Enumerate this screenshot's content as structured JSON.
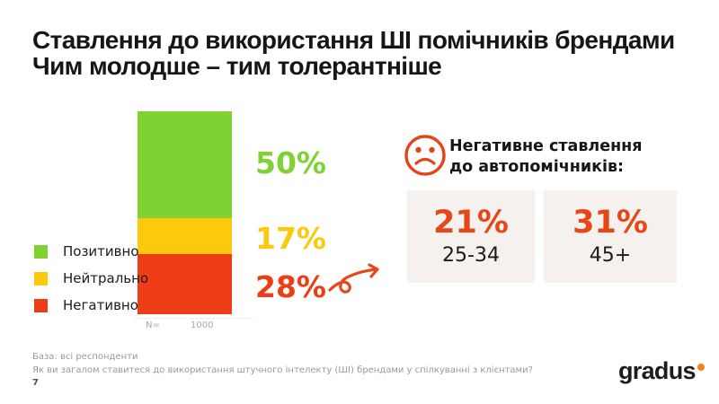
{
  "slide": {
    "title_line1": "Ставлення до використання ШІ помічників брендами",
    "title_line2": "Чим молодше – тим толерантніше",
    "footer_line1": "База: всі респонденти",
    "footer_line2": "Як ви загалом ставитеся до використання штучного інтелекту (ШІ) брендами у спілкуванні з клієнтами?",
    "page_number": "7"
  },
  "chart_data": {
    "type": "bar",
    "stacked": true,
    "categories": [
      "Всі респонденти"
    ],
    "series": [
      {
        "name": "Позитивно",
        "value": 50,
        "color": "#7ed233"
      },
      {
        "name": "Нейтрально",
        "value": 17,
        "color": "#fcca0b"
      },
      {
        "name": "Негативно",
        "value": 28,
        "color": "#ee3c16"
      }
    ],
    "value_labels": [
      "50%",
      "17%",
      "28%"
    ],
    "base_label": "N=",
    "base_value": "1000",
    "legend_position": "left",
    "ylim": [
      0,
      95
    ]
  },
  "panel": {
    "icon": "sad-face-icon",
    "heading_line1": "Негативне ставлення",
    "heading_line2": "до автопомічників:",
    "cards": [
      {
        "value": "21%",
        "label": "25-34"
      },
      {
        "value": "31%",
        "label": "45+"
      }
    ]
  },
  "logo": {
    "text": "gradus",
    "dot_color": "#f58220"
  },
  "colors": {
    "positive": "#7ed233",
    "neutral": "#fcca0b",
    "negative": "#ee3c16",
    "accent": "#e74617",
    "card_bg": "#f4f1ee"
  }
}
